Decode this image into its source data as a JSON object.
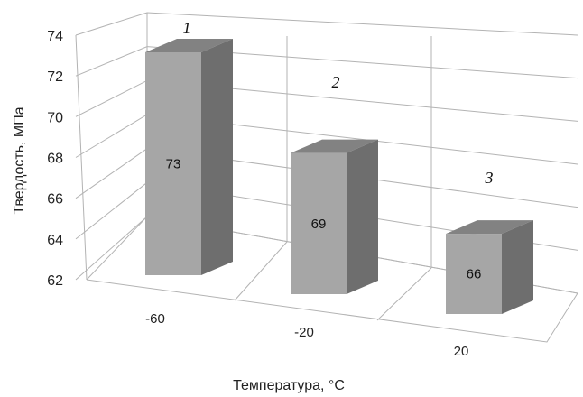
{
  "chart_data": {
    "type": "bar",
    "title": "",
    "xlabel": "Температура, °С",
    "ylabel": "Твердость, МПа",
    "categories": [
      "-60",
      "-20",
      "20"
    ],
    "values": [
      73,
      69,
      66
    ],
    "data_labels": [
      "73",
      "69",
      "66"
    ],
    "bar_annotations": [
      "1",
      "2",
      "3"
    ],
    "ylim": [
      62,
      74
    ],
    "yticks": [
      "62",
      "64",
      "66",
      "68",
      "70",
      "72",
      "74"
    ],
    "grid": true,
    "legend": "none",
    "style": "3d-column",
    "colors": {
      "front": "#a6a6a6",
      "side": "#6e6e6e",
      "top": "#828282",
      "grid": "#b3b3b3"
    }
  }
}
